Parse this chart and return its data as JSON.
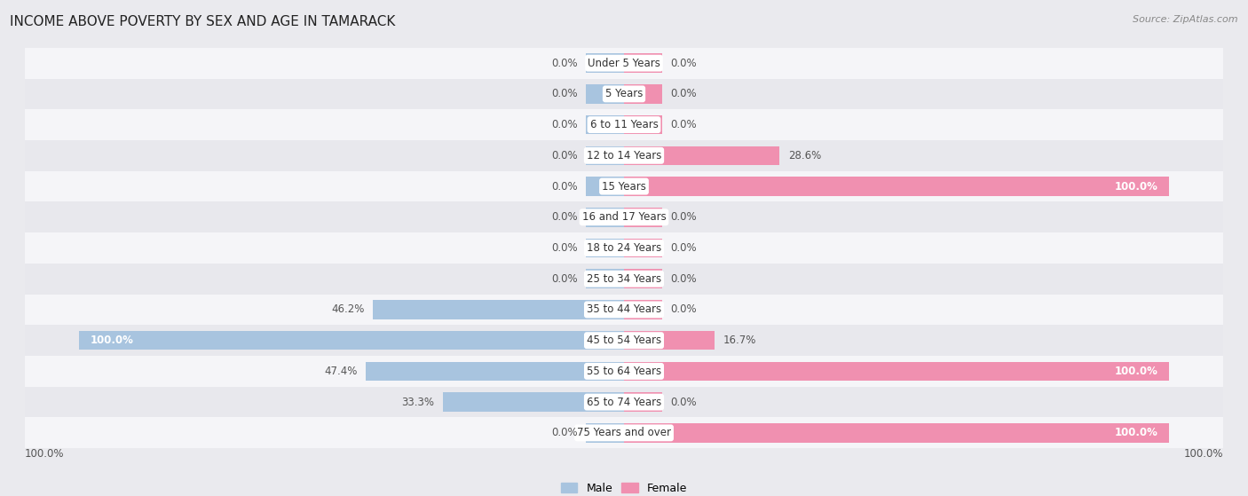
{
  "title": "INCOME ABOVE POVERTY BY SEX AND AGE IN TAMARACK",
  "source": "Source: ZipAtlas.com",
  "categories": [
    "Under 5 Years",
    "5 Years",
    "6 to 11 Years",
    "12 to 14 Years",
    "15 Years",
    "16 and 17 Years",
    "18 to 24 Years",
    "25 to 34 Years",
    "35 to 44 Years",
    "45 to 54 Years",
    "55 to 64 Years",
    "65 to 74 Years",
    "75 Years and over"
  ],
  "male_values": [
    0.0,
    0.0,
    0.0,
    0.0,
    0.0,
    0.0,
    0.0,
    0.0,
    46.2,
    100.0,
    47.4,
    33.3,
    0.0
  ],
  "female_values": [
    0.0,
    0.0,
    0.0,
    28.6,
    100.0,
    0.0,
    0.0,
    0.0,
    0.0,
    16.7,
    100.0,
    0.0,
    100.0
  ],
  "male_color": "#a8c4df",
  "female_color": "#f090b0",
  "background_color": "#eaeaee",
  "row_bg_even": "#f5f5f8",
  "row_bg_odd": "#e8e8ed",
  "title_fontsize": 11,
  "source_fontsize": 8,
  "bar_height": 0.62,
  "min_bar": 7.0,
  "max_val": 100.0,
  "x_range": 110,
  "label_fontsize": 8.5,
  "cat_fontsize": 8.5,
  "legend_male_color": "#a8c4df",
  "legend_female_color": "#f090b0"
}
